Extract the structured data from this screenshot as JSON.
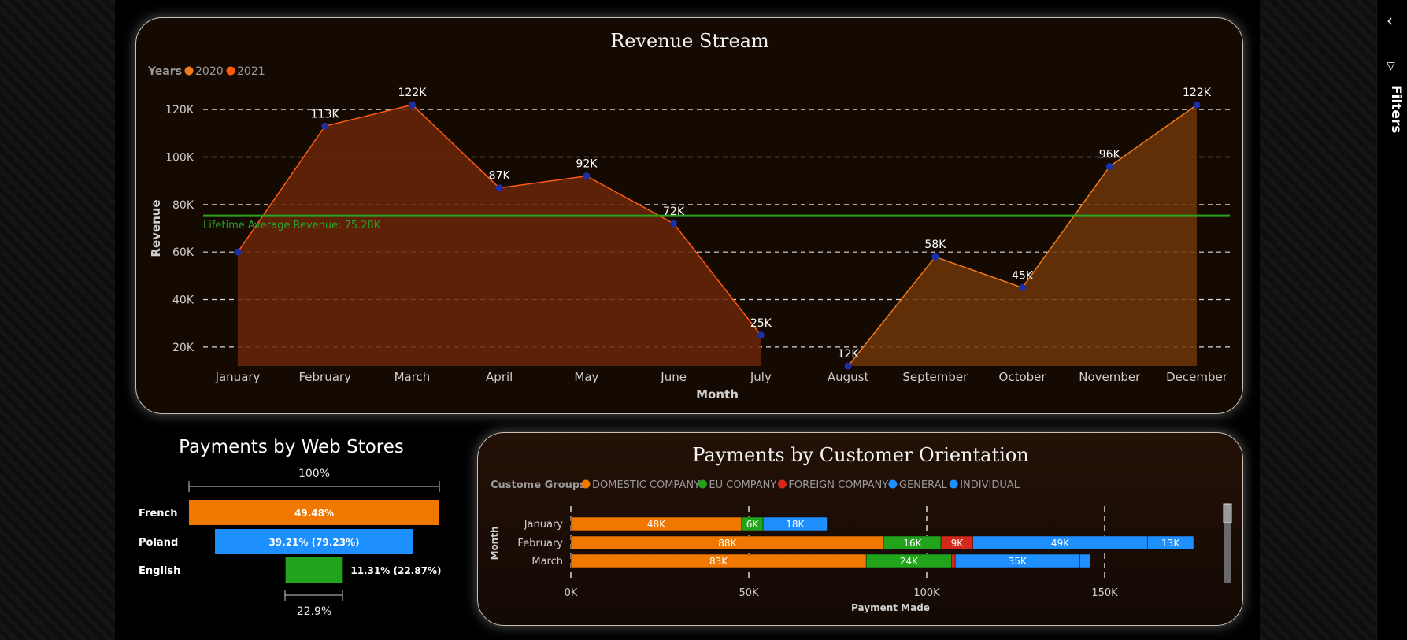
{
  "panel": {
    "filters_label": "Filters"
  },
  "revenue_chart": {
    "title": "Revenue Stream",
    "legend_title": "Years",
    "legend": [
      {
        "name": "2020",
        "color": "#f07a1a"
      },
      {
        "name": "2021",
        "color": "#ff5a0a"
      }
    ],
    "average_label": "Lifetime Average Revenue: 75.28K"
  },
  "webstores_chart": {
    "title": "Payments by Web Stores",
    "top_label": "100%",
    "bottom_label": "22.9%"
  },
  "orientation_chart": {
    "title": "Payments by Customer Orientation",
    "legend_title": "Custome Groups"
  },
  "chart_data": [
    {
      "type": "area",
      "title": "Revenue Stream",
      "xlabel": "Month",
      "ylabel": "Revenue",
      "categories": [
        "January",
        "February",
        "March",
        "April",
        "May",
        "June",
        "July",
        "August",
        "September",
        "October",
        "November",
        "December"
      ],
      "ylim": [
        12000,
        128000
      ],
      "yticks": [
        20000,
        40000,
        60000,
        80000,
        100000,
        120000
      ],
      "ytick_labels": [
        "20K",
        "40K",
        "60K",
        "80K",
        "100K",
        "120K"
      ],
      "grid": true,
      "legend_position": "top-left",
      "series": [
        {
          "name": "2020",
          "color": "#6e2a08",
          "values": [
            60000,
            113000,
            122000,
            87000,
            92000,
            72000,
            25000,
            null,
            null,
            null,
            null,
            null
          ],
          "labels": [
            "",
            "113K",
            "122K",
            "87K",
            "92K",
            "72K",
            "25K",
            "",
            "",
            "",
            "",
            ""
          ]
        },
        {
          "name": "2021",
          "color": "#7a3a0a",
          "values": [
            null,
            null,
            null,
            null,
            null,
            null,
            null,
            12000,
            58000,
            45000,
            96000,
            122000
          ],
          "labels": [
            "",
            "",
            "",
            "",
            "",
            "",
            "",
            "12K",
            "58K",
            "45K",
            "96K",
            "122K"
          ]
        }
      ],
      "average_line": 75280
    },
    {
      "type": "bar",
      "title": "Payments by Web Stores",
      "categories": [
        "French",
        "Poland",
        "English"
      ],
      "values": [
        49.48,
        39.21,
        11.31
      ],
      "labels": [
        "49.48%",
        "39.21% (79.23%)",
        "11.31% (22.87%)"
      ],
      "colors": [
        "#f07800",
        "#1e8fff",
        "#22a31c"
      ]
    },
    {
      "type": "bar",
      "title": "Payments by Customer Orientation",
      "xlabel": "Payment Made",
      "ylabel": "Month",
      "categories": [
        "January",
        "February",
        "March"
      ],
      "xlim": [
        0,
        185000
      ],
      "xticks": [
        0,
        50000,
        100000,
        150000
      ],
      "xtick_labels": [
        "0K",
        "50K",
        "100K",
        "150K"
      ],
      "legend_position": "top-left",
      "series": [
        {
          "name": "DOMESTIC COMPANY",
          "color": "#f07800",
          "values": [
            48000,
            88000,
            83000
          ],
          "labels": [
            "48K",
            "88K",
            "83K"
          ]
        },
        {
          "name": "EU COMPANY",
          "color": "#22a31c",
          "values": [
            6000,
            16000,
            24000
          ],
          "labels": [
            "6K",
            "16K",
            "24K"
          ]
        },
        {
          "name": "FOREIGN COMPANY",
          "color": "#d4281a",
          "values": [
            0,
            9000,
            1000
          ],
          "labels": [
            "",
            "9K",
            ""
          ]
        },
        {
          "name": "GENERAL",
          "color": "#1e8fff",
          "values": [
            18000,
            49000,
            35000
          ],
          "labels": [
            "18K",
            "49K",
            "35K"
          ]
        },
        {
          "name": "INDIVIDUAL",
          "color": "#1e8fff",
          "values": [
            0,
            13000,
            3000
          ],
          "labels": [
            "",
            "13K",
            ""
          ]
        }
      ]
    }
  ]
}
